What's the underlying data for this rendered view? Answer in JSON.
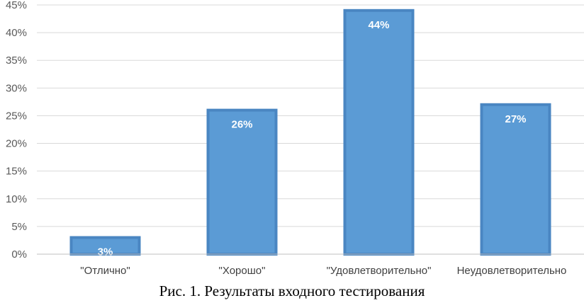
{
  "caption": "Рис. 1. Результаты входного тестирования",
  "colors": {
    "bar_fill": "#5b9bd5",
    "bar_border": "#4a86c2",
    "grid": "#d9d9d9",
    "axis": "#bfbfbf"
  },
  "chart_data": {
    "type": "bar",
    "title": "",
    "xlabel": "",
    "ylabel": "",
    "categories": [
      "\"Отлично\"",
      "\"Хорошо\"",
      "\"Удовлетворительно\"",
      "Неудовлетворительно"
    ],
    "values": [
      3,
      26,
      44,
      27
    ],
    "data_labels": [
      "3%",
      "26%",
      "44%",
      "27%"
    ],
    "yticks": [
      "0%",
      "5%",
      "10%",
      "15%",
      "20%",
      "25%",
      "30%",
      "35%",
      "40%",
      "45%"
    ],
    "ylim": [
      0,
      45
    ],
    "grid": true,
    "legend": "none"
  }
}
